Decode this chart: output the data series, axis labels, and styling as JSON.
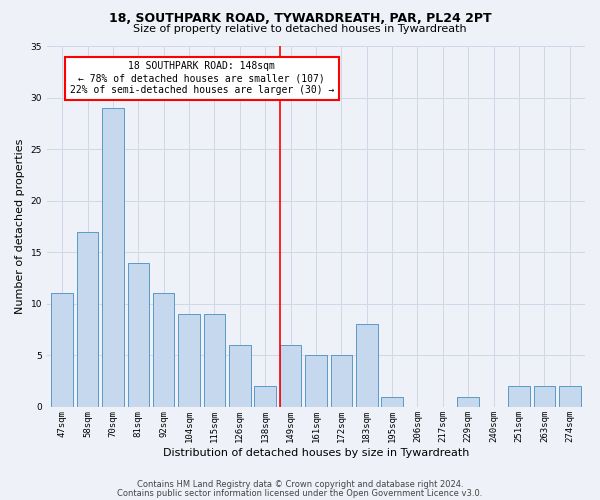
{
  "title": "18, SOUTHPARK ROAD, TYWARDREATH, PAR, PL24 2PT",
  "subtitle": "Size of property relative to detached houses in Tywardreath",
  "xlabel": "Distribution of detached houses by size in Tywardreath",
  "ylabel": "Number of detached properties",
  "footnote1": "Contains HM Land Registry data © Crown copyright and database right 2024.",
  "footnote2": "Contains public sector information licensed under the Open Government Licence v3.0.",
  "categories": [
    "47sqm",
    "58sqm",
    "70sqm",
    "81sqm",
    "92sqm",
    "104sqm",
    "115sqm",
    "126sqm",
    "138sqm",
    "149sqm",
    "161sqm",
    "172sqm",
    "183sqm",
    "195sqm",
    "206sqm",
    "217sqm",
    "229sqm",
    "240sqm",
    "251sqm",
    "263sqm",
    "274sqm"
  ],
  "values": [
    11,
    17,
    29,
    14,
    11,
    9,
    9,
    6,
    2,
    6,
    5,
    5,
    8,
    1,
    0,
    0,
    1,
    0,
    2,
    2,
    2
  ],
  "bar_color": "#c5d8ed",
  "bar_edge_color": "#5a9ac5",
  "vline_x_index": 9,
  "vline_color": "red",
  "annotation_title": "18 SOUTHPARK ROAD: 148sqm",
  "annotation_line1": "← 78% of detached houses are smaller (107)",
  "annotation_line2": "22% of semi-detached houses are larger (30) →",
  "annotation_box_color": "white",
  "annotation_box_edge": "red",
  "grid_color": "#d0d8e8",
  "bg_color": "#eef2f8",
  "ylim": [
    0,
    35
  ],
  "yticks": [
    0,
    5,
    10,
    15,
    20,
    25,
    30,
    35
  ],
  "title_fontsize": 9,
  "subtitle_fontsize": 8,
  "ylabel_fontsize": 8,
  "xlabel_fontsize": 8,
  "tick_fontsize": 6.5,
  "annot_fontsize": 7,
  "footnote_fontsize": 6
}
